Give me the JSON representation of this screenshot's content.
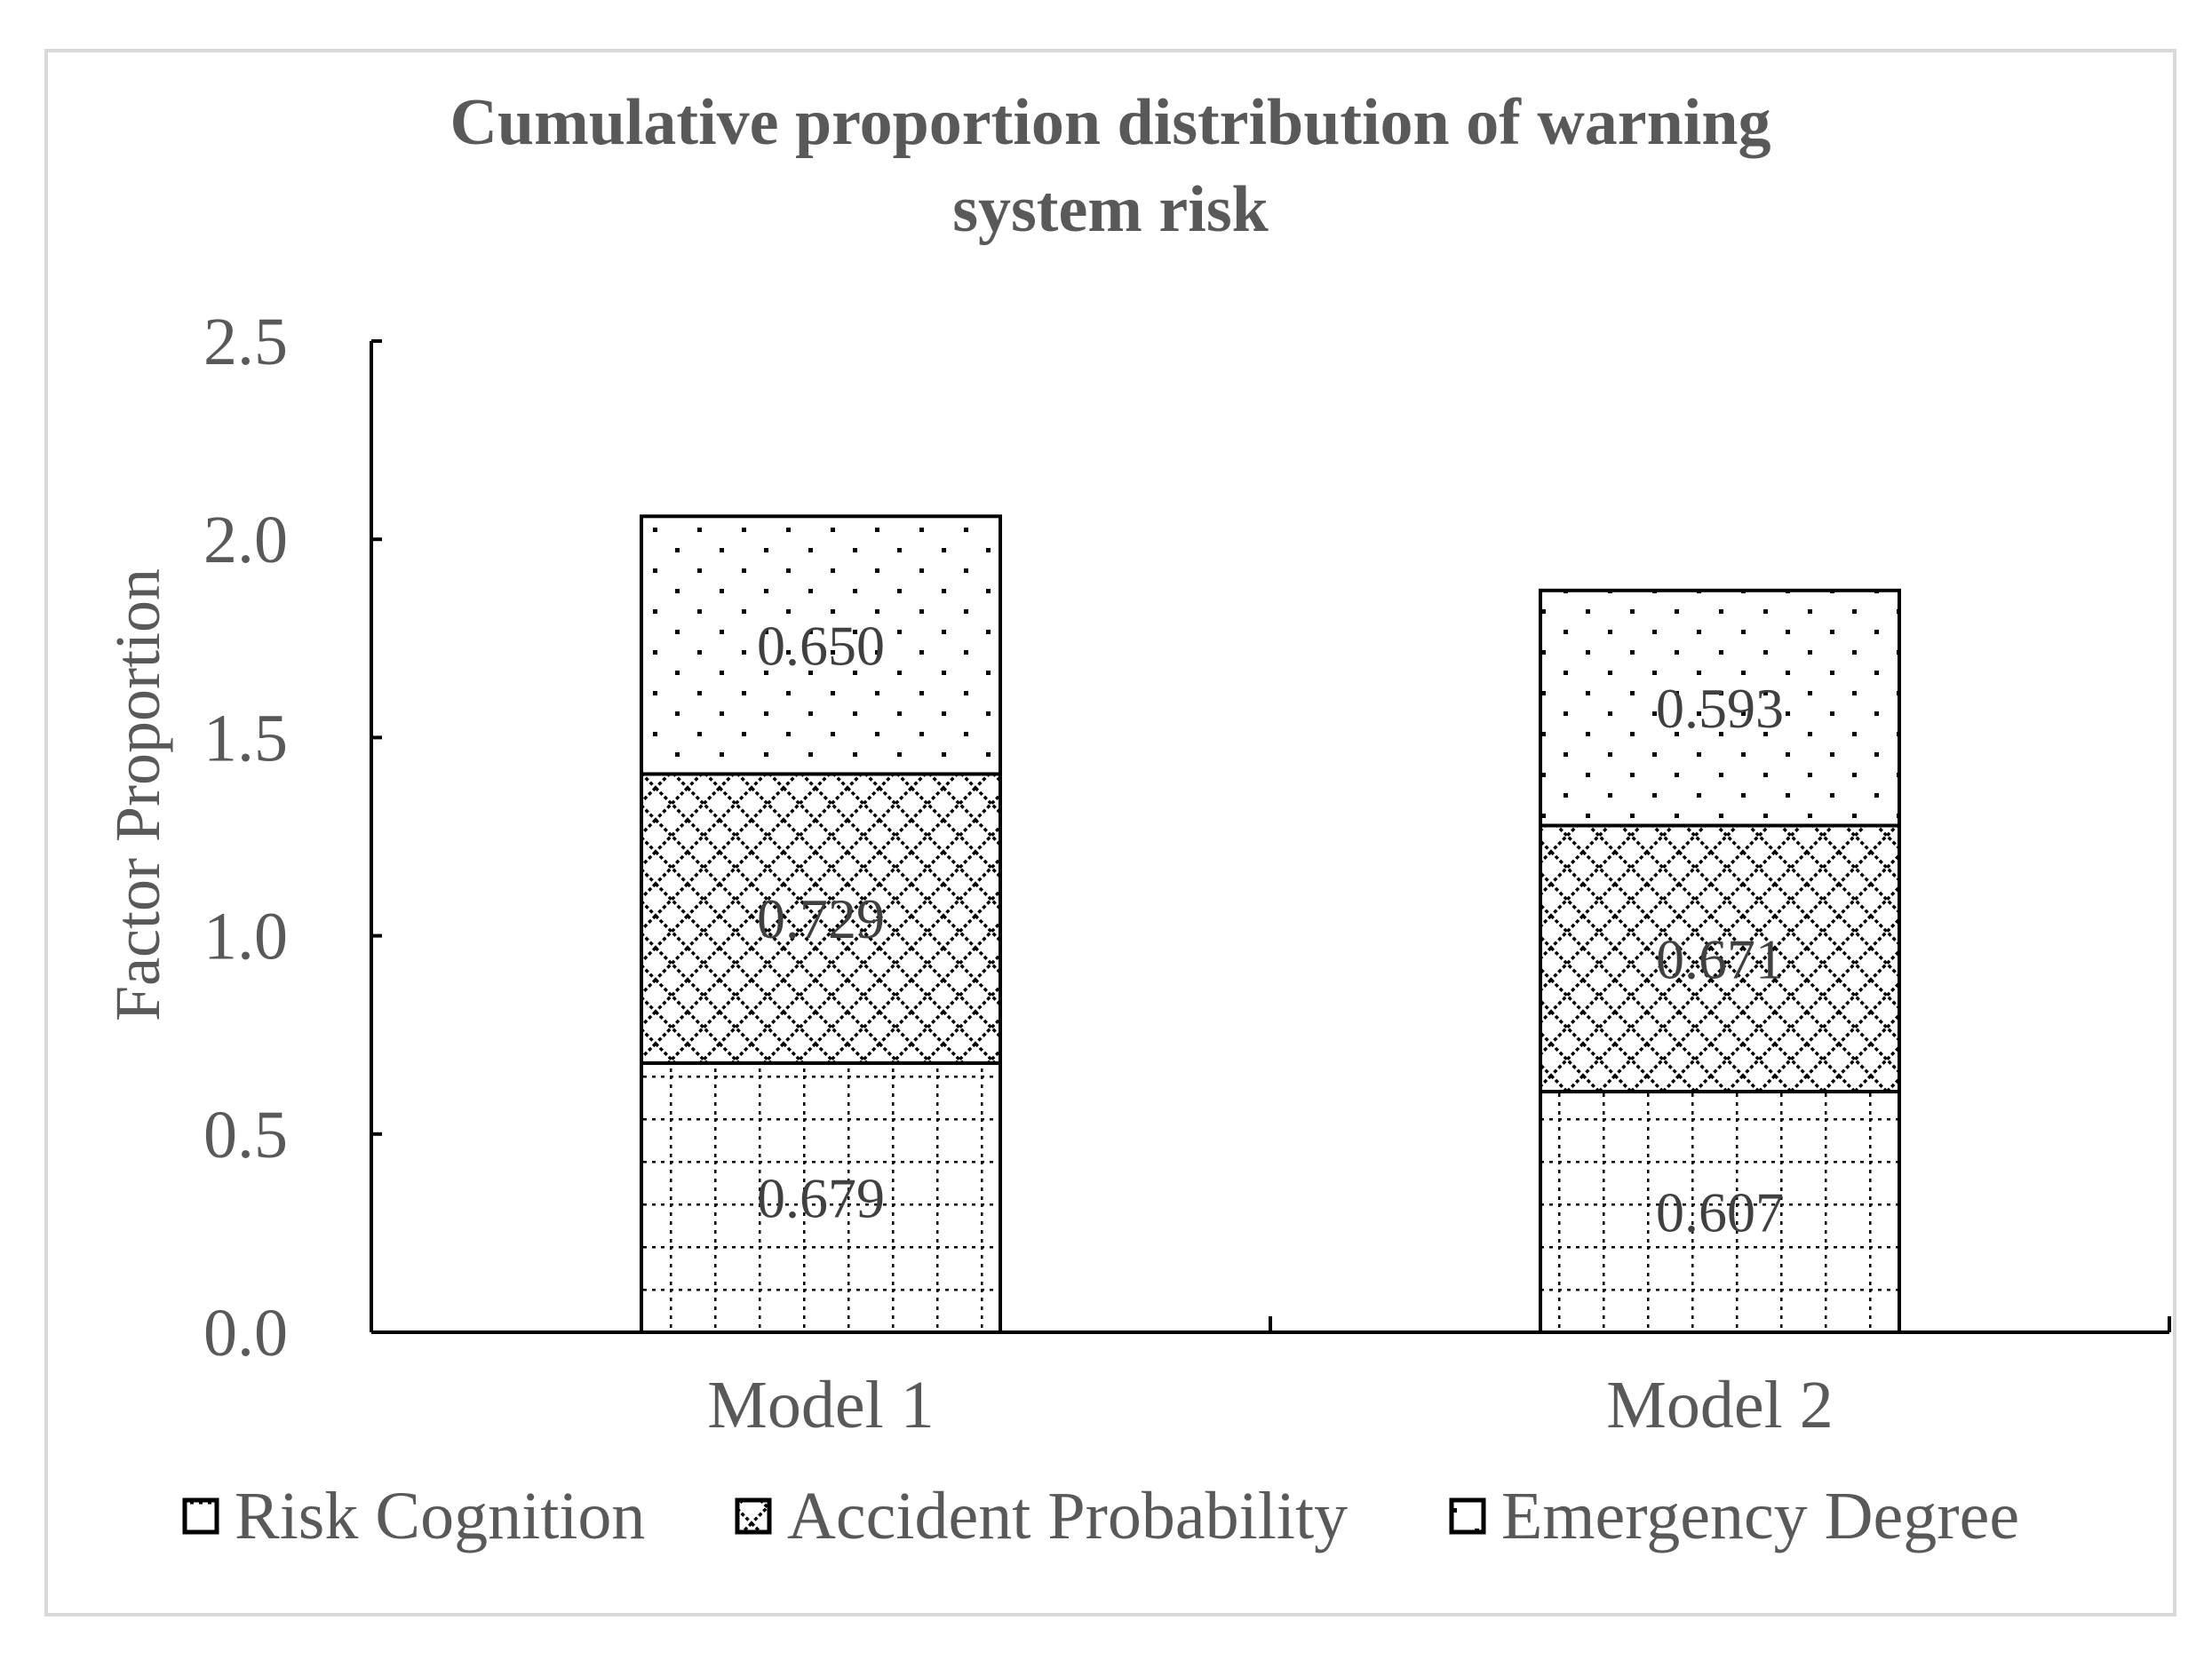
{
  "chart_data": {
    "type": "bar",
    "stacked": true,
    "title": "Cumulative proportion distribution of warning system risk",
    "title_lines": [
      "Cumulative proportion distribution of warning",
      "system risk"
    ],
    "xlabel": "",
    "ylabel": "Factor Proportion",
    "ylim": [
      0,
      2.5
    ],
    "yticks": [
      "0.0",
      "0.5",
      "1.0",
      "1.5",
      "2.0",
      "2.5"
    ],
    "categories": [
      "Model 1",
      "Model 2"
    ],
    "series": [
      {
        "name": "Risk Cognition",
        "values": [
          0.679,
          0.607
        ],
        "labels": [
          "0.679",
          "0.607"
        ],
        "pattern": "grid"
      },
      {
        "name": "Accident Probability",
        "values": [
          0.729,
          0.671
        ],
        "labels": [
          "0.729",
          "0.671"
        ],
        "pattern": "diamond"
      },
      {
        "name": "Emergency Degree",
        "values": [
          0.65,
          0.593
        ],
        "labels": [
          "0.650",
          "0.593"
        ],
        "pattern": "dots"
      }
    ],
    "legend_position": "bottom",
    "colors": {
      "text": "#595959",
      "axis": "#000000",
      "frame": "#d9d9d9",
      "fill": "#ffffff",
      "label": "#404040"
    }
  }
}
